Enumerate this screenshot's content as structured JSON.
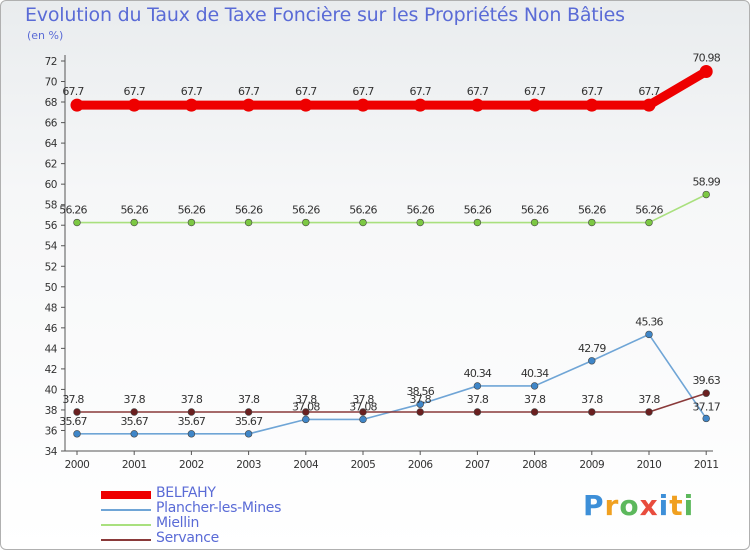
{
  "title": "Evolution du Taux de Taxe Foncière sur les Propriétés Non Bâties",
  "unit": "(en %)",
  "logo": {
    "text": "Proxiti",
    "colors": [
      "#3d8fd8",
      "#f0a020",
      "#5cb85c",
      "#e84c3d",
      "#3d8fd8",
      "#f0a020",
      "#5cb85c"
    ]
  },
  "chart_data": {
    "type": "line",
    "title": "Evolution du Taux de Taxe Foncière sur les Propriétés Non Bâties",
    "ylabel": "(en %)",
    "xlabel": "",
    "ylim": [
      34,
      72
    ],
    "ytick_step": 2,
    "grid": false,
    "legend_position": "bottom-left",
    "x": [
      "2000",
      "2001",
      "2002",
      "2003",
      "2004",
      "2005",
      "2006",
      "2007",
      "2008",
      "2009",
      "2010",
      "2011"
    ],
    "series": [
      {
        "name": "BELFAHY",
        "color": "#ee0000",
        "width": "thick",
        "values": [
          67.7,
          67.7,
          67.7,
          67.7,
          67.7,
          67.7,
          67.7,
          67.7,
          67.7,
          67.7,
          67.7,
          70.98
        ],
        "labels": [
          "67.7",
          "67.7",
          "67.7",
          "67.7",
          "67.7",
          "67.7",
          "67.7",
          "67.7",
          "67.7",
          "67.7",
          "67.7",
          "70.98"
        ]
      },
      {
        "name": "Plancher-les-Mines",
        "color": "#6fa5d6",
        "marker": "#3f86c8",
        "width": "thin",
        "values": [
          35.67,
          35.67,
          35.67,
          35.67,
          37.08,
          37.08,
          38.56,
          40.34,
          40.34,
          42.79,
          45.36,
          37.17
        ],
        "labels": [
          "35.67",
          "35.67",
          "35.67",
          "35.67",
          "37.08",
          "37.08",
          "38.56",
          "40.34",
          "40.34",
          "42.79",
          "45.36",
          "37.17"
        ]
      },
      {
        "name": "Miellin",
        "color": "#a9e07e",
        "marker": "#7cc843",
        "width": "thin",
        "values": [
          56.26,
          56.26,
          56.26,
          56.26,
          56.26,
          56.26,
          56.26,
          56.26,
          56.26,
          56.26,
          56.26,
          58.99
        ],
        "labels": [
          "56.26",
          "56.26",
          "56.26",
          "56.26",
          "56.26",
          "56.26",
          "56.26",
          "56.26",
          "56.26",
          "56.26",
          "56.26",
          "58.99"
        ]
      },
      {
        "name": "Servance",
        "color": "#8a3a3a",
        "marker": "#6a1f1f",
        "width": "thin",
        "values": [
          37.8,
          37.8,
          37.8,
          37.8,
          37.8,
          37.8,
          37.8,
          37.8,
          37.8,
          37.8,
          37.8,
          39.63
        ],
        "labels": [
          "37.8",
          "37.8",
          "37.8",
          "37.8",
          "37.8",
          "37.8",
          "37.8",
          "37.8",
          "37.8",
          "37.8",
          "37.8",
          "39.63"
        ]
      }
    ]
  }
}
